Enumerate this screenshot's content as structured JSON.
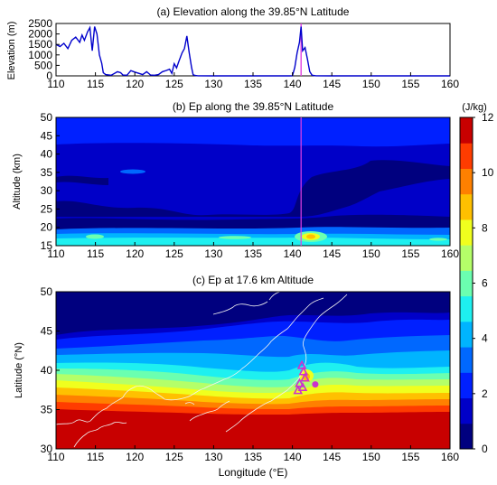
{
  "chart_data": [
    {
      "type": "line",
      "title": "(a) Elevation along the 39.85°N Latitude",
      "xlabel": "",
      "ylabel": "Elevation (m)",
      "xlim": [
        110,
        160
      ],
      "ylim": [
        0,
        2500
      ],
      "x_ticks": [
        "110",
        "115",
        "120",
        "125",
        "130",
        "135",
        "140",
        "145",
        "150",
        "155",
        "160"
      ],
      "y_ticks": [
        "0",
        "500",
        "1000",
        "1500",
        "2000",
        "2500"
      ],
      "grid": false,
      "series": [
        {
          "color": "#0000cc",
          "x": [
            110,
            110.5,
            111,
            111.5,
            112,
            112.5,
            113,
            113.3,
            113.6,
            114,
            114.3,
            114.6,
            114.9,
            115.2,
            115.5,
            115.8,
            116,
            116.3,
            117,
            117.8,
            118.2,
            118.5,
            119,
            119.5,
            120,
            121,
            121.5,
            122,
            122.5,
            123,
            123.5,
            124,
            124.4,
            124.7,
            125,
            125.3,
            125.6,
            126,
            126.3,
            126.6,
            126.9,
            127.2,
            127.4,
            127.6,
            128,
            130,
            135,
            138,
            139,
            139.6,
            140,
            140.3,
            140.6,
            140.9,
            141.1,
            141.3,
            141.6,
            141.9,
            142.2,
            142.5,
            143,
            145,
            150,
            155,
            160
          ],
          "y": [
            1500,
            1400,
            1550,
            1300,
            1700,
            1850,
            1600,
            1950,
            1700,
            2100,
            2300,
            1200,
            2350,
            2000,
            1000,
            600,
            150,
            60,
            30,
            200,
            150,
            40,
            30,
            250,
            180,
            60,
            200,
            40,
            30,
            60,
            200,
            260,
            320,
            120,
            580,
            380,
            700,
            1100,
            1300,
            1900,
            1100,
            400,
            60,
            20,
            5,
            0,
            0,
            0,
            0,
            0,
            5,
            400,
            1100,
            1600,
            2350,
            1200,
            1350,
            800,
            200,
            30,
            5,
            0,
            0,
            0,
            0
          ]
        }
      ],
      "marker_line": {
        "x": 141.1,
        "color": "#e040e0"
      }
    },
    {
      "type": "heatmap",
      "title": "(b) Ep along the 39.85°N Latitude",
      "xlabel": "",
      "ylabel": "Altitude (km)",
      "xlim": [
        110,
        160
      ],
      "ylim": [
        15,
        50
      ],
      "x_ticks": [
        "110",
        "115",
        "120",
        "125",
        "130",
        "135",
        "140",
        "145",
        "150",
        "155",
        "160"
      ],
      "y_ticks": [
        "15",
        "20",
        "25",
        "30",
        "35",
        "40",
        "45",
        "50"
      ],
      "marker_line": {
        "x": 141.1,
        "color": "#e040e0"
      }
    },
    {
      "type": "heatmap",
      "title": "(c) Ep at 17.6 km Altitude",
      "xlabel": "Longitude (°E)",
      "ylabel": "Latitude (°N)",
      "xlim": [
        110,
        160
      ],
      "ylim": [
        30,
        50
      ],
      "x_ticks": [
        "110",
        "115",
        "120",
        "125",
        "130",
        "135",
        "140",
        "145",
        "150",
        "155",
        "160"
      ],
      "y_ticks": [
        "30",
        "35",
        "40",
        "45",
        "50"
      ],
      "markers": [
        {
          "shape": "triangle",
          "color": "#cc33cc",
          "points": [
            [
              141.2,
              40.6
            ],
            [
              141.4,
              39.8
            ],
            [
              141.6,
              39.0
            ],
            [
              140.9,
              38.3
            ],
            [
              141.3,
              37.8
            ],
            [
              140.7,
              37.4
            ]
          ]
        },
        {
          "shape": "circle",
          "color": "#cc33cc",
          "points": [
            [
              142.9,
              38.2
            ]
          ]
        }
      ]
    },
    {
      "type": "colorbar",
      "unit": "(J/kg)",
      "range": [
        0,
        12
      ],
      "ticks": [
        "0",
        "2",
        "4",
        "6",
        "8",
        "10",
        "12"
      ],
      "levels": [
        "#00007f",
        "#0000c8",
        "#0020ff",
        "#0068ff",
        "#00b4ff",
        "#1ef0f0",
        "#6bffb0",
        "#b4ff69",
        "#f0ff1e",
        "#ffc000",
        "#ff8000",
        "#ff3c00",
        "#c80000"
      ]
    }
  ]
}
